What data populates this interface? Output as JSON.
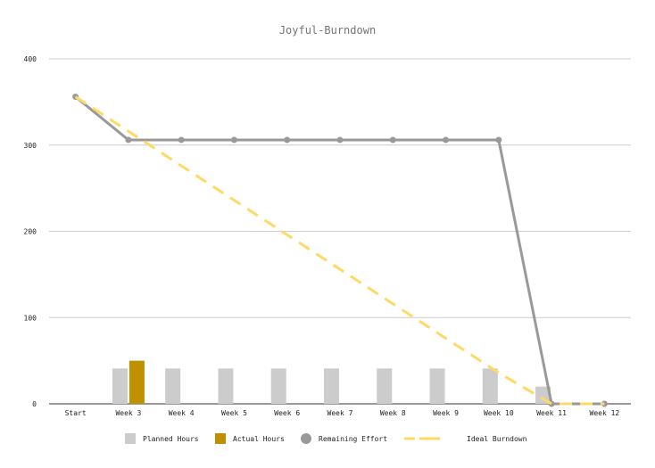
{
  "chart_data": {
    "type": "bar+line",
    "title": "Joyful-Burndown",
    "categories": [
      "Start",
      "Week 3",
      "Week 4",
      "Week 5",
      "Week 6",
      "Week 7",
      "Week 8",
      "Week 9",
      "Week 10",
      "Week 11",
      "Week 12"
    ],
    "ylim": [
      0,
      400
    ],
    "yticks": [
      0,
      100,
      200,
      300,
      400
    ],
    "grid": true,
    "legend_position": "bottom",
    "series": [
      {
        "name": "Planned Hours",
        "kind": "bar",
        "color": "#cccccc",
        "values": [
          null,
          41,
          41,
          41,
          41,
          41,
          41,
          41,
          41,
          20,
          null
        ]
      },
      {
        "name": "Actual Hours",
        "kind": "bar",
        "color": "#bf9000",
        "values": [
          null,
          50,
          null,
          null,
          null,
          null,
          null,
          null,
          null,
          null,
          null
        ]
      },
      {
        "name": "Remaining Effort",
        "kind": "line",
        "color": "#999999",
        "marker": "circle",
        "values": [
          356,
          306,
          306,
          306,
          306,
          306,
          306,
          306,
          306,
          0,
          0
        ]
      },
      {
        "name": "Ideal Burndown",
        "kind": "dashed-line",
        "color": "#ffd966",
        "values": [
          356,
          316,
          276,
          236,
          196,
          156,
          116,
          76,
          36,
          0,
          0
        ]
      }
    ]
  }
}
